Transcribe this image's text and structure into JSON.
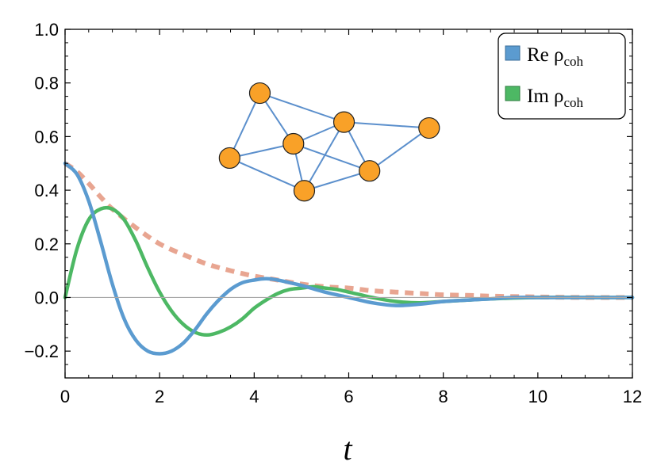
{
  "chart_data": {
    "type": "line",
    "xlabel": "t",
    "ylabel": "",
    "xlim": [
      0,
      12
    ],
    "ylim": [
      -0.3,
      1.0
    ],
    "x_ticks": [
      0,
      2,
      4,
      6,
      8,
      10,
      12
    ],
    "x_tick_labels": [
      "0",
      "2",
      "4",
      "6",
      "8",
      "10",
      "12"
    ],
    "y_ticks": [
      -0.2,
      0.0,
      0.2,
      0.4,
      0.6,
      0.8,
      1.0
    ],
    "y_tick_labels": [
      "−0.2",
      "0.0",
      "0.2",
      "0.4",
      "0.6",
      "0.8",
      "1.0"
    ],
    "grid": false,
    "zero_line": true,
    "legend": {
      "placement": "top-right",
      "entries": [
        {
          "main": "Re ρ",
          "sub": "coh",
          "color": "#5b9bd0"
        },
        {
          "main": "Im ρ",
          "sub": "coh",
          "color": "#4db864"
        }
      ]
    },
    "series": [
      {
        "key": "re",
        "color": "#5b9bd0",
        "style": "solid",
        "x": [
          0,
          0.25,
          0.5,
          0.75,
          1.0,
          1.25,
          1.5,
          1.75,
          2.0,
          2.25,
          2.5,
          2.75,
          3.0,
          3.25,
          3.5,
          3.75,
          4.0,
          4.25,
          4.5,
          4.75,
          5.0,
          5.5,
          6.0,
          6.5,
          7.0,
          7.5,
          8.0,
          8.5,
          9.0,
          9.5,
          10.0,
          11.0,
          12.0
        ],
        "values": [
          0.5,
          0.46,
          0.36,
          0.21,
          0.05,
          -0.08,
          -0.16,
          -0.2,
          -0.21,
          -0.2,
          -0.17,
          -0.12,
          -0.06,
          -0.01,
          0.03,
          0.055,
          0.065,
          0.07,
          0.065,
          0.055,
          0.045,
          0.02,
          0.0,
          -0.02,
          -0.03,
          -0.025,
          -0.015,
          -0.01,
          -0.005,
          0.0,
          0.0,
          0.0,
          0.0
        ]
      },
      {
        "key": "im",
        "color": "#4db864",
        "style": "solid",
        "x": [
          0,
          0.25,
          0.5,
          0.75,
          1.0,
          1.25,
          1.5,
          1.75,
          2.0,
          2.25,
          2.5,
          2.75,
          3.0,
          3.25,
          3.5,
          3.75,
          4.0,
          4.25,
          4.5,
          4.75,
          5.0,
          5.25,
          5.5,
          5.75,
          6.0,
          6.25,
          6.5,
          7.0,
          7.5,
          8.0,
          8.5,
          9.0,
          10.0,
          11.0,
          12.0
        ],
        "values": [
          0.0,
          0.18,
          0.29,
          0.33,
          0.33,
          0.29,
          0.21,
          0.11,
          0.02,
          -0.05,
          -0.1,
          -0.13,
          -0.14,
          -0.13,
          -0.11,
          -0.08,
          -0.04,
          -0.01,
          0.015,
          0.03,
          0.035,
          0.04,
          0.035,
          0.03,
          0.02,
          0.01,
          0.0,
          -0.015,
          -0.02,
          -0.015,
          -0.01,
          -0.005,
          0.0,
          0.0,
          0.0
        ]
      },
      {
        "key": "envelope",
        "color": "#e8a591",
        "style": "dashed",
        "x": [
          0,
          0.25,
          0.5,
          0.75,
          1.0,
          1.5,
          2.0,
          2.5,
          3.0,
          3.5,
          4.0,
          4.5,
          5.0,
          5.5,
          6.0,
          6.5,
          7.0,
          7.5,
          8.0,
          8.5,
          9.0,
          10.0,
          11.0,
          12.0
        ],
        "values": [
          0.5,
          0.47,
          0.425,
          0.375,
          0.33,
          0.26,
          0.2,
          0.16,
          0.125,
          0.1,
          0.08,
          0.065,
          0.05,
          0.04,
          0.035,
          0.025,
          0.02,
          0.015,
          0.01,
          0.008,
          0.005,
          0.002,
          0.0,
          0.0
        ]
      }
    ],
    "inset_network": {
      "node_color": "#f9a128",
      "edge_color": "#5b8fcc",
      "nodes": [
        {
          "id": "n1",
          "x": 4.12,
          "y": 0.762
        },
        {
          "id": "n2",
          "x": 3.48,
          "y": 0.52
        },
        {
          "id": "n3",
          "x": 4.83,
          "y": 0.573
        },
        {
          "id": "n4",
          "x": 5.06,
          "y": 0.398
        },
        {
          "id": "n5",
          "x": 5.9,
          "y": 0.654
        },
        {
          "id": "n6",
          "x": 6.44,
          "y": 0.472
        },
        {
          "id": "n7",
          "x": 7.7,
          "y": 0.632
        }
      ],
      "edges": [
        [
          "n1",
          "n2"
        ],
        [
          "n1",
          "n3"
        ],
        [
          "n1",
          "n5"
        ],
        [
          "n2",
          "n3"
        ],
        [
          "n2",
          "n4"
        ],
        [
          "n3",
          "n4"
        ],
        [
          "n3",
          "n5"
        ],
        [
          "n3",
          "n6"
        ],
        [
          "n4",
          "n5"
        ],
        [
          "n4",
          "n6"
        ],
        [
          "n5",
          "n6"
        ],
        [
          "n5",
          "n7"
        ],
        [
          "n6",
          "n7"
        ]
      ]
    }
  }
}
